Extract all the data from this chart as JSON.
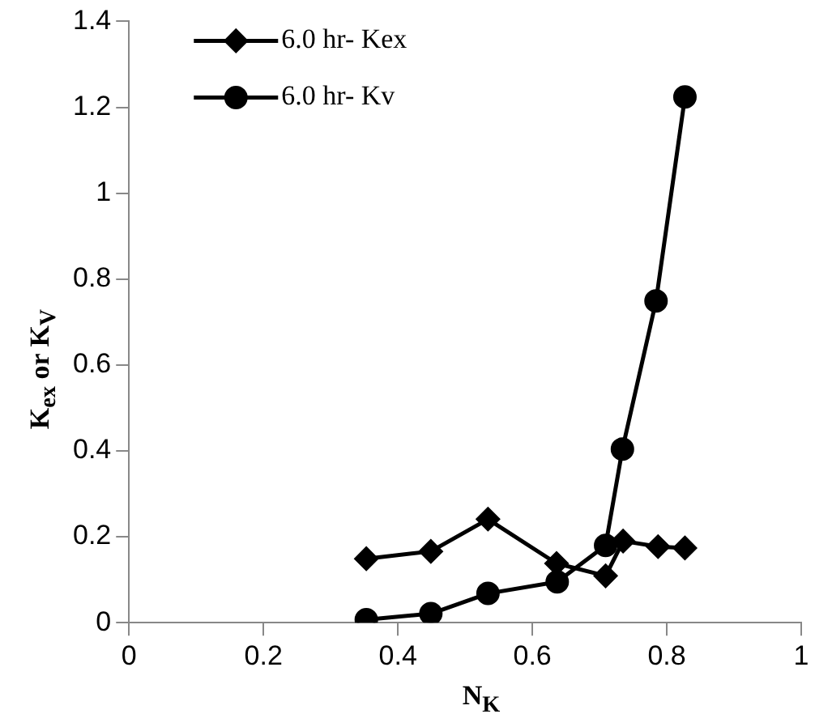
{
  "chart_data": {
    "type": "line",
    "xlabel": "N$_{K}$",
    "ylabel": "K$_{ex}$ or K$_{V}$",
    "xlim": [
      0,
      1
    ],
    "xticks": [
      0,
      0.2,
      0.4,
      0.6,
      0.8,
      1
    ],
    "ylim": [
      0,
      1.4
    ],
    "yticks": [
      0,
      0.2,
      0.4,
      0.6,
      0.8,
      1,
      1.2,
      1.4
    ],
    "grid": false,
    "legend": "top left",
    "line_style": "solid",
    "series": [
      {
        "name": "6.0 hr- Kex",
        "color": "#000000",
        "marker": "diamond",
        "x": [
          0.353,
          0.449,
          0.534,
          0.636,
          0.709,
          0.735,
          0.787,
          0.827
        ],
        "values": [
          0.149,
          0.166,
          0.241,
          0.138,
          0.109,
          0.19,
          0.177,
          0.174
        ]
      },
      {
        "name": "6.0 hr- Kv",
        "color": "#000000",
        "marker": "circle",
        "x": [
          0.353,
          0.449,
          0.534,
          0.637,
          0.709,
          0.734,
          0.784,
          0.827
        ],
        "values": [
          0.007,
          0.021,
          0.068,
          0.095,
          0.18,
          0.404,
          0.749,
          1.224
        ]
      }
    ]
  }
}
